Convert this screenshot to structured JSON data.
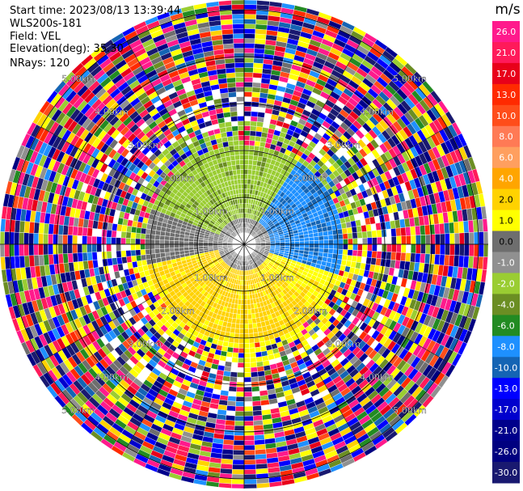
{
  "header": {
    "start_time": "Start time: 2023/08/13 13:39:44",
    "instrument": "WLS200s-181",
    "field": "Field: VEL",
    "elevation": "Elevation(deg): 35.30",
    "nrays": "NRays: 120"
  },
  "colorbar": {
    "unit": "m/s",
    "ticks": [
      "26.0",
      "21.0",
      "17.0",
      "13.0",
      "10.0",
      "8.0",
      "6.0",
      "4.0",
      "2.0",
      "1.0",
      "0.0",
      "-1.0",
      "-2.0",
      "-4.0",
      "-6.0",
      "-8.0",
      "-10.0",
      "-13.0",
      "-17.0",
      "-21.0",
      "-26.0",
      "-30.0"
    ],
    "colors": [
      "#ff1a8c",
      "#ff1a5a",
      "#e8001a",
      "#ff2a00",
      "#ff4d1a",
      "#ff7a55",
      "#ff9f5f",
      "#ffa500",
      "#ffd200",
      "#ffff00",
      "#6e6e6e",
      "#909090",
      "#9acd32",
      "#6b8e23",
      "#228b22",
      "#1e90ff",
      "#1464b4",
      "#0000ff",
      "#0000cd",
      "#00008b",
      "#000080",
      "#191970"
    ]
  },
  "chart_data": {
    "type": "heatmap",
    "title": "",
    "field": "VEL",
    "unit": "m/s",
    "nrays": 120,
    "elevation_deg": 35.3,
    "range_ring_labels": [
      "1.00km",
      "2.00km",
      "3.00km",
      "4.00km",
      "5.00km"
    ],
    "range_rings_km": [
      1,
      2,
      3,
      4,
      5
    ],
    "max_range_km": 5.0,
    "value_range": [
      -30,
      26
    ]
  }
}
